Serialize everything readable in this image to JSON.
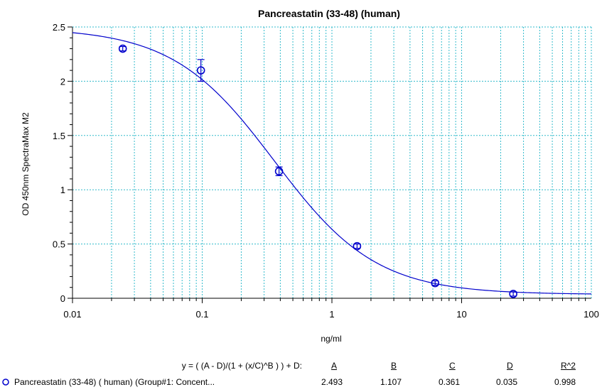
{
  "chart_data": {
    "type": "scatter",
    "title": "Pancreastatin (33-48) (human)",
    "xlabel": "ng/ml",
    "ylabel": "OD 450nm SpectraMax M2",
    "x_scale": "log",
    "xlim": [
      0.01,
      100
    ],
    "ylim": [
      0,
      2.5
    ],
    "x_ticks": [
      "0.01",
      "0.1",
      "1",
      "10",
      "100"
    ],
    "y_ticks": [
      "0",
      "0.5",
      "1",
      "1.5",
      "2",
      "2.5"
    ],
    "grid": true,
    "colors": {
      "series": "#0000cc",
      "grid": "#33bbcc"
    },
    "series": [
      {
        "name": "Pancreastatin (33-48) ( human) (Group#1: Concent...",
        "x": [
          0.0244,
          0.0977,
          0.391,
          1.5625,
          6.25,
          25
        ],
        "y": [
          2.3,
          2.1,
          1.17,
          0.48,
          0.14,
          0.04
        ],
        "y_err": [
          0.02,
          0.1,
          0.04,
          0.02,
          0.02,
          0.02
        ]
      }
    ],
    "fit": {
      "equation": "y = ( (A - D)/(1 + (x/C)^B ) ) + D:",
      "headers": [
        "A",
        "B",
        "C",
        "D",
        "R^2"
      ],
      "values": [
        "2.493",
        "1.107",
        "0.361",
        "0.035",
        "0.998"
      ]
    }
  }
}
